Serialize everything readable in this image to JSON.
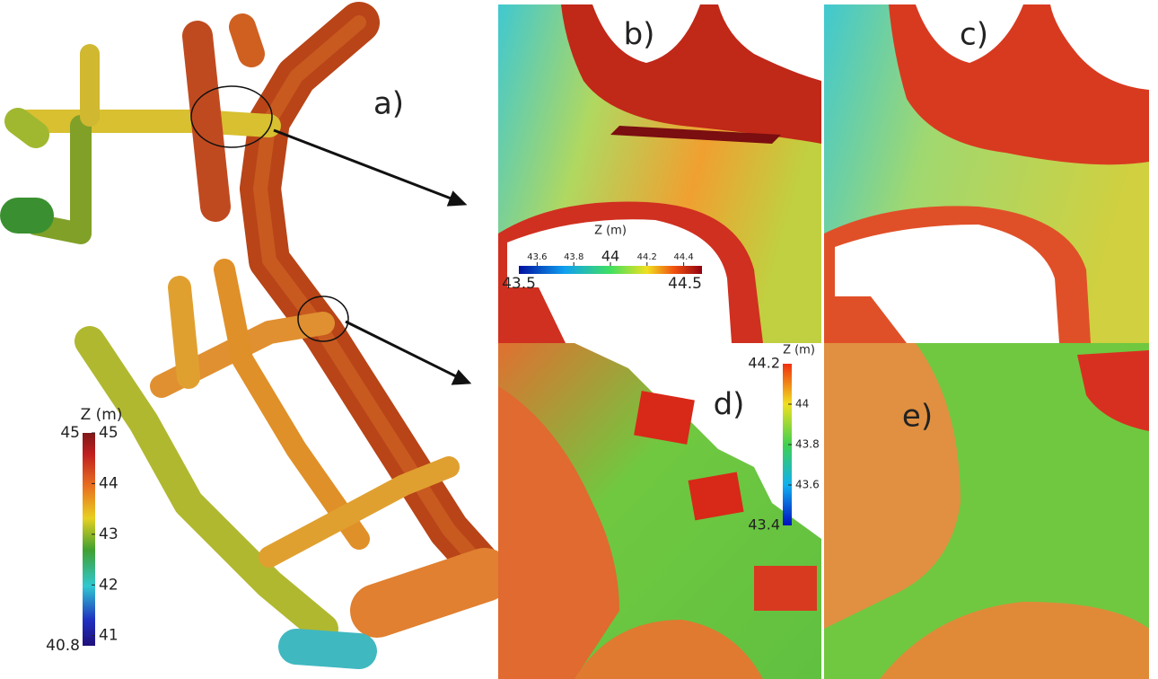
{
  "panels": [
    {
      "label": "a)"
    },
    {
      "label": "b)"
    },
    {
      "label": "c)"
    },
    {
      "label": "d)"
    },
    {
      "label": "e)"
    }
  ],
  "colorbars": [
    {
      "title": "Z (m)",
      "min": 40.8,
      "max": 45,
      "ticks": [
        45,
        44,
        43,
        42,
        41
      ]
    },
    {
      "title": "Z (m)",
      "min": 43.5,
      "max": 44.5,
      "ticks": [
        43.6,
        43.8,
        44,
        44.2,
        44.4
      ]
    },
    {
      "title": "Z (m)",
      "min": 43.4,
      "max": 44.2,
      "ticks": [
        44,
        43.8,
        43.6
      ]
    }
  ]
}
